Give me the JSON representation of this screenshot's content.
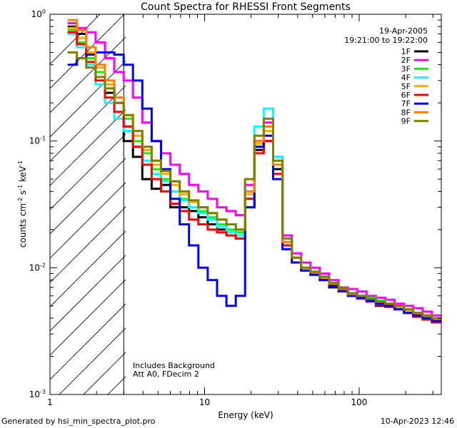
{
  "chart_data": {
    "type": "line",
    "title": "Count Spectra for RHESSI Front Segments",
    "xlabel": "Energy (keV)",
    "ylabel_main": "counts cm",
    "ylabel_exp1": "-2",
    "ylabel_mid": " s",
    "ylabel_exp2": "-1",
    "ylabel_end": " keV",
    "ylabel_exp3": "-1",
    "x_scale": "log",
    "y_scale": "log",
    "xlim": [
      1.0,
      340
    ],
    "ylim": [
      0.001,
      1.0
    ],
    "x_ticks": [
      {
        "v": 1,
        "label": "1"
      },
      {
        "v": 10,
        "label": "10"
      },
      {
        "v": 100,
        "label": "100"
      }
    ],
    "y_ticks": [
      {
        "v": 0.001,
        "base": "10",
        "exp": "-3"
      },
      {
        "v": 0.01,
        "base": "10",
        "exp": "-2"
      },
      {
        "v": 0.1,
        "base": "10",
        "exp": "-1"
      },
      {
        "v": 1.0,
        "base": "10",
        "exp": "0"
      }
    ],
    "shaded_below_keV": 3.0,
    "annotations": {
      "date": "19-Apr-2005",
      "time_range": "19:21:00 to 19:22:00",
      "background": "Includes Background",
      "attenuator": "Att A0, FDecim 2"
    },
    "legend_position": "top-right",
    "series": [
      {
        "name": "1F",
        "color": "#000000",
        "values": [
          0.8,
          0.7,
          0.5,
          0.35,
          0.24,
          0.2,
          0.1,
          0.075,
          0.05,
          0.042,
          0.045,
          0.03,
          0.03,
          0.028,
          0.025,
          0.022,
          0.02,
          0.018,
          0.017,
          0.03,
          0.085,
          0.1,
          0.06,
          0.016,
          0.012,
          0.01,
          0.009,
          0.008,
          0.007,
          0.0065,
          0.006,
          0.0058,
          0.0055,
          0.005,
          0.0052,
          0.0048,
          0.0045,
          0.0042,
          0.004,
          0.0038
        ]
      },
      {
        "name": "2F",
        "color": "#ff00ff",
        "values": [
          0.85,
          0.78,
          0.72,
          0.6,
          0.45,
          0.35,
          0.3,
          0.22,
          0.14,
          0.1,
          0.08,
          0.065,
          0.055,
          0.045,
          0.04,
          0.035,
          0.03,
          0.028,
          0.026,
          0.045,
          0.1,
          0.14,
          0.075,
          0.018,
          0.013,
          0.011,
          0.01,
          0.009,
          0.008,
          0.007,
          0.0068,
          0.0065,
          0.006,
          0.0058,
          0.0056,
          0.0052,
          0.005,
          0.0048,
          0.0045,
          0.0042
        ]
      },
      {
        "name": "3F",
        "color": "#00ff00",
        "values": [
          0.75,
          0.6,
          0.45,
          0.35,
          0.28,
          0.22,
          0.15,
          0.1,
          0.08,
          0.06,
          0.05,
          0.04,
          0.035,
          0.03,
          0.028,
          0.025,
          0.022,
          0.02,
          0.019,
          0.035,
          0.09,
          0.12,
          0.07,
          0.017,
          0.012,
          0.01,
          0.009,
          0.0085,
          0.0075,
          0.0068,
          0.0062,
          0.006,
          0.0058,
          0.0055,
          0.0052,
          0.005,
          0.0047,
          0.0044,
          0.0042,
          0.004
        ]
      },
      {
        "name": "4F",
        "color": "#00ffff",
        "values": [
          0.7,
          0.55,
          0.4,
          0.28,
          0.2,
          0.15,
          0.12,
          0.09,
          0.07,
          0.055,
          0.048,
          0.04,
          0.034,
          0.03,
          0.027,
          0.024,
          0.021,
          0.019,
          0.018,
          0.04,
          0.13,
          0.18,
          0.075,
          0.017,
          0.012,
          0.01,
          0.009,
          0.0082,
          0.0073,
          0.0066,
          0.0061,
          0.0058,
          0.0055,
          0.0052,
          0.005,
          0.0048,
          0.0045,
          0.0043,
          0.0041,
          0.0039
        ]
      },
      {
        "name": "5F",
        "color": "#ffaa00",
        "values": [
          0.78,
          0.65,
          0.5,
          0.38,
          0.28,
          0.22,
          0.16,
          0.11,
          0.085,
          0.065,
          0.055,
          0.045,
          0.038,
          0.033,
          0.03,
          0.027,
          0.024,
          0.022,
          0.02,
          0.038,
          0.095,
          0.12,
          0.065,
          0.016,
          0.012,
          0.01,
          0.009,
          0.0083,
          0.0074,
          0.0067,
          0.0061,
          0.0059,
          0.0056,
          0.0053,
          0.0051,
          0.0049,
          0.0046,
          0.0043,
          0.0041,
          0.0039
        ]
      },
      {
        "name": "6F",
        "color": "#ff0000",
        "values": [
          0.72,
          0.58,
          0.42,
          0.3,
          0.22,
          0.17,
          0.13,
          0.09,
          0.065,
          0.05,
          0.04,
          0.032,
          0.028,
          0.024,
          0.022,
          0.02,
          0.019,
          0.018,
          0.017,
          0.035,
          0.08,
          0.1,
          0.055,
          0.015,
          0.011,
          0.0095,
          0.0088,
          0.008,
          0.0072,
          0.0065,
          0.006,
          0.0057,
          0.0054,
          0.0051,
          0.0049,
          0.0047,
          0.0044,
          0.0041,
          0.0039,
          0.0037
        ]
      },
      {
        "name": "7F",
        "color": "#0000ff",
        "values": [
          0.4,
          0.45,
          0.48,
          0.5,
          0.5,
          0.48,
          0.4,
          0.3,
          0.18,
          0.1,
          0.06,
          0.035,
          0.022,
          0.015,
          0.01,
          0.008,
          0.006,
          0.005,
          0.006,
          0.03,
          0.09,
          0.11,
          0.05,
          0.014,
          0.011,
          0.0095,
          0.0088,
          0.008,
          0.0072,
          0.0066,
          0.006,
          0.0058,
          0.0055,
          0.0052,
          0.005,
          0.0047,
          0.0044,
          0.0042,
          0.004,
          0.0038
        ]
      },
      {
        "name": "8F",
        "color": "#ff8000",
        "values": [
          0.9,
          0.75,
          0.55,
          0.4,
          0.3,
          0.22,
          0.16,
          0.12,
          0.09,
          0.07,
          0.058,
          0.048,
          0.04,
          0.034,
          0.03,
          0.027,
          0.024,
          0.022,
          0.02,
          0.04,
          0.1,
          0.13,
          0.065,
          0.016,
          0.012,
          0.01,
          0.0092,
          0.0084,
          0.0075,
          0.0068,
          0.0062,
          0.006,
          0.0057,
          0.0054,
          0.0052,
          0.005,
          0.0047,
          0.0044,
          0.0042,
          0.004
        ]
      },
      {
        "name": "9F",
        "color": "#808000",
        "values": [
          0.5,
          0.45,
          0.38,
          0.32,
          0.26,
          0.2,
          0.16,
          0.12,
          0.09,
          0.07,
          0.058,
          0.048,
          0.04,
          0.034,
          0.03,
          0.027,
          0.024,
          0.022,
          0.02,
          0.05,
          0.11,
          0.15,
          0.07,
          0.017,
          0.012,
          0.01,
          0.0093,
          0.0085,
          0.0076,
          0.0069,
          0.0063,
          0.006,
          0.0057,
          0.0054,
          0.0052,
          0.005,
          0.0047,
          0.0044,
          0.0042,
          0.004
        ]
      }
    ]
  },
  "footer": {
    "generated_by": "Generated by hsi_min_spectra_plot.pro",
    "timestamp": "10-Apr-2023 12:46"
  }
}
